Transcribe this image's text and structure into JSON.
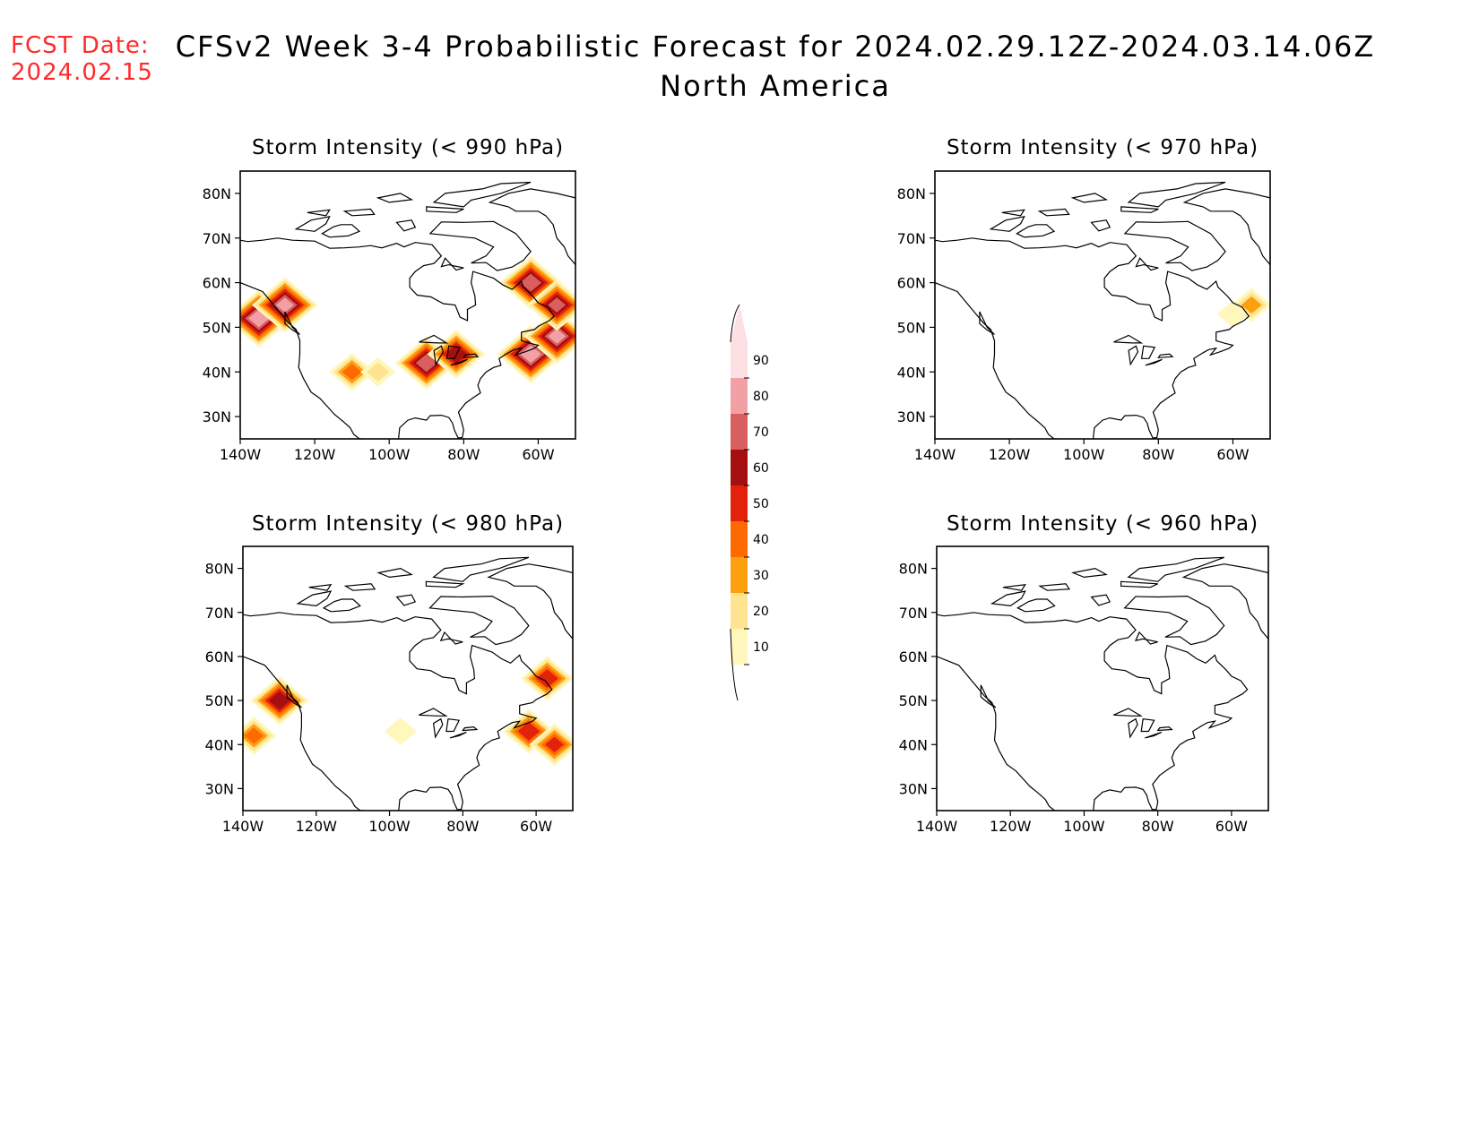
{
  "fcst_label": "FCST Date:",
  "fcst_date": "2024.02.15",
  "title_line1": "CFSv2 Week 3-4 Probabilistic Forecast for 2024.02.29.12Z-2024.03.14.06Z",
  "title_line2": "North America",
  "lat_labels": [
    "80N",
    "70N",
    "60N",
    "50N",
    "40N",
    "30N"
  ],
  "lon_labels": [
    "140W",
    "120W",
    "100W",
    "80W",
    "60W"
  ],
  "panels": [
    {
      "title": "Storm Intensity (< 990 hPa)"
    },
    {
      "title": "Storm Intensity (< 970 hPa)"
    },
    {
      "title": "Storm Intensity (< 980 hPa)"
    },
    {
      "title": "Storm Intensity (< 960 hPa)"
    }
  ],
  "colorbar": {
    "levels": [
      "10",
      "20",
      "30",
      "40",
      "50",
      "60",
      "70",
      "80",
      "90"
    ],
    "colors": [
      "#fff7bc",
      "#fee391",
      "#fe9f0e",
      "#fd6a02",
      "#e3220b",
      "#a50f0f",
      "#d95f5f",
      "#f2a0a6",
      "#fde0e3"
    ]
  },
  "chart_data": {
    "type": "heatmap",
    "units": "probability (%)",
    "domain": {
      "lon": [
        -140,
        -50
      ],
      "lat": [
        25,
        85
      ]
    },
    "panels": [
      {
        "threshold_hPa": 990,
        "blobs": [
          {
            "lon": -135,
            "lat": 52,
            "prob": 85
          },
          {
            "lon": -128,
            "lat": 55,
            "prob": 80
          },
          {
            "lon": -110,
            "lat": 40,
            "prob": 40
          },
          {
            "lon": -103,
            "lat": 40,
            "prob": 20
          },
          {
            "lon": -90,
            "lat": 42,
            "prob": 75
          },
          {
            "lon": -82,
            "lat": 44,
            "prob": 65
          },
          {
            "lon": -62,
            "lat": 44,
            "prob": 85
          },
          {
            "lon": -55,
            "lat": 48,
            "prob": 80
          },
          {
            "lon": -62,
            "lat": 60,
            "prob": 75
          },
          {
            "lon": -55,
            "lat": 55,
            "prob": 70
          }
        ]
      },
      {
        "threshold_hPa": 970,
        "blobs": [
          {
            "lon": -55,
            "lat": 55,
            "prob": 30
          },
          {
            "lon": -60,
            "lat": 53,
            "prob": 15
          }
        ]
      },
      {
        "threshold_hPa": 980,
        "blobs": [
          {
            "lon": -130,
            "lat": 50,
            "prob": 65
          },
          {
            "lon": -137,
            "lat": 42,
            "prob": 40
          },
          {
            "lon": -62,
            "lat": 43,
            "prob": 55
          },
          {
            "lon": -55,
            "lat": 40,
            "prob": 50
          },
          {
            "lon": -57,
            "lat": 55,
            "prob": 55
          },
          {
            "lon": -97,
            "lat": 43,
            "prob": 15
          }
        ]
      },
      {
        "threshold_hPa": 960,
        "blobs": []
      }
    ]
  }
}
